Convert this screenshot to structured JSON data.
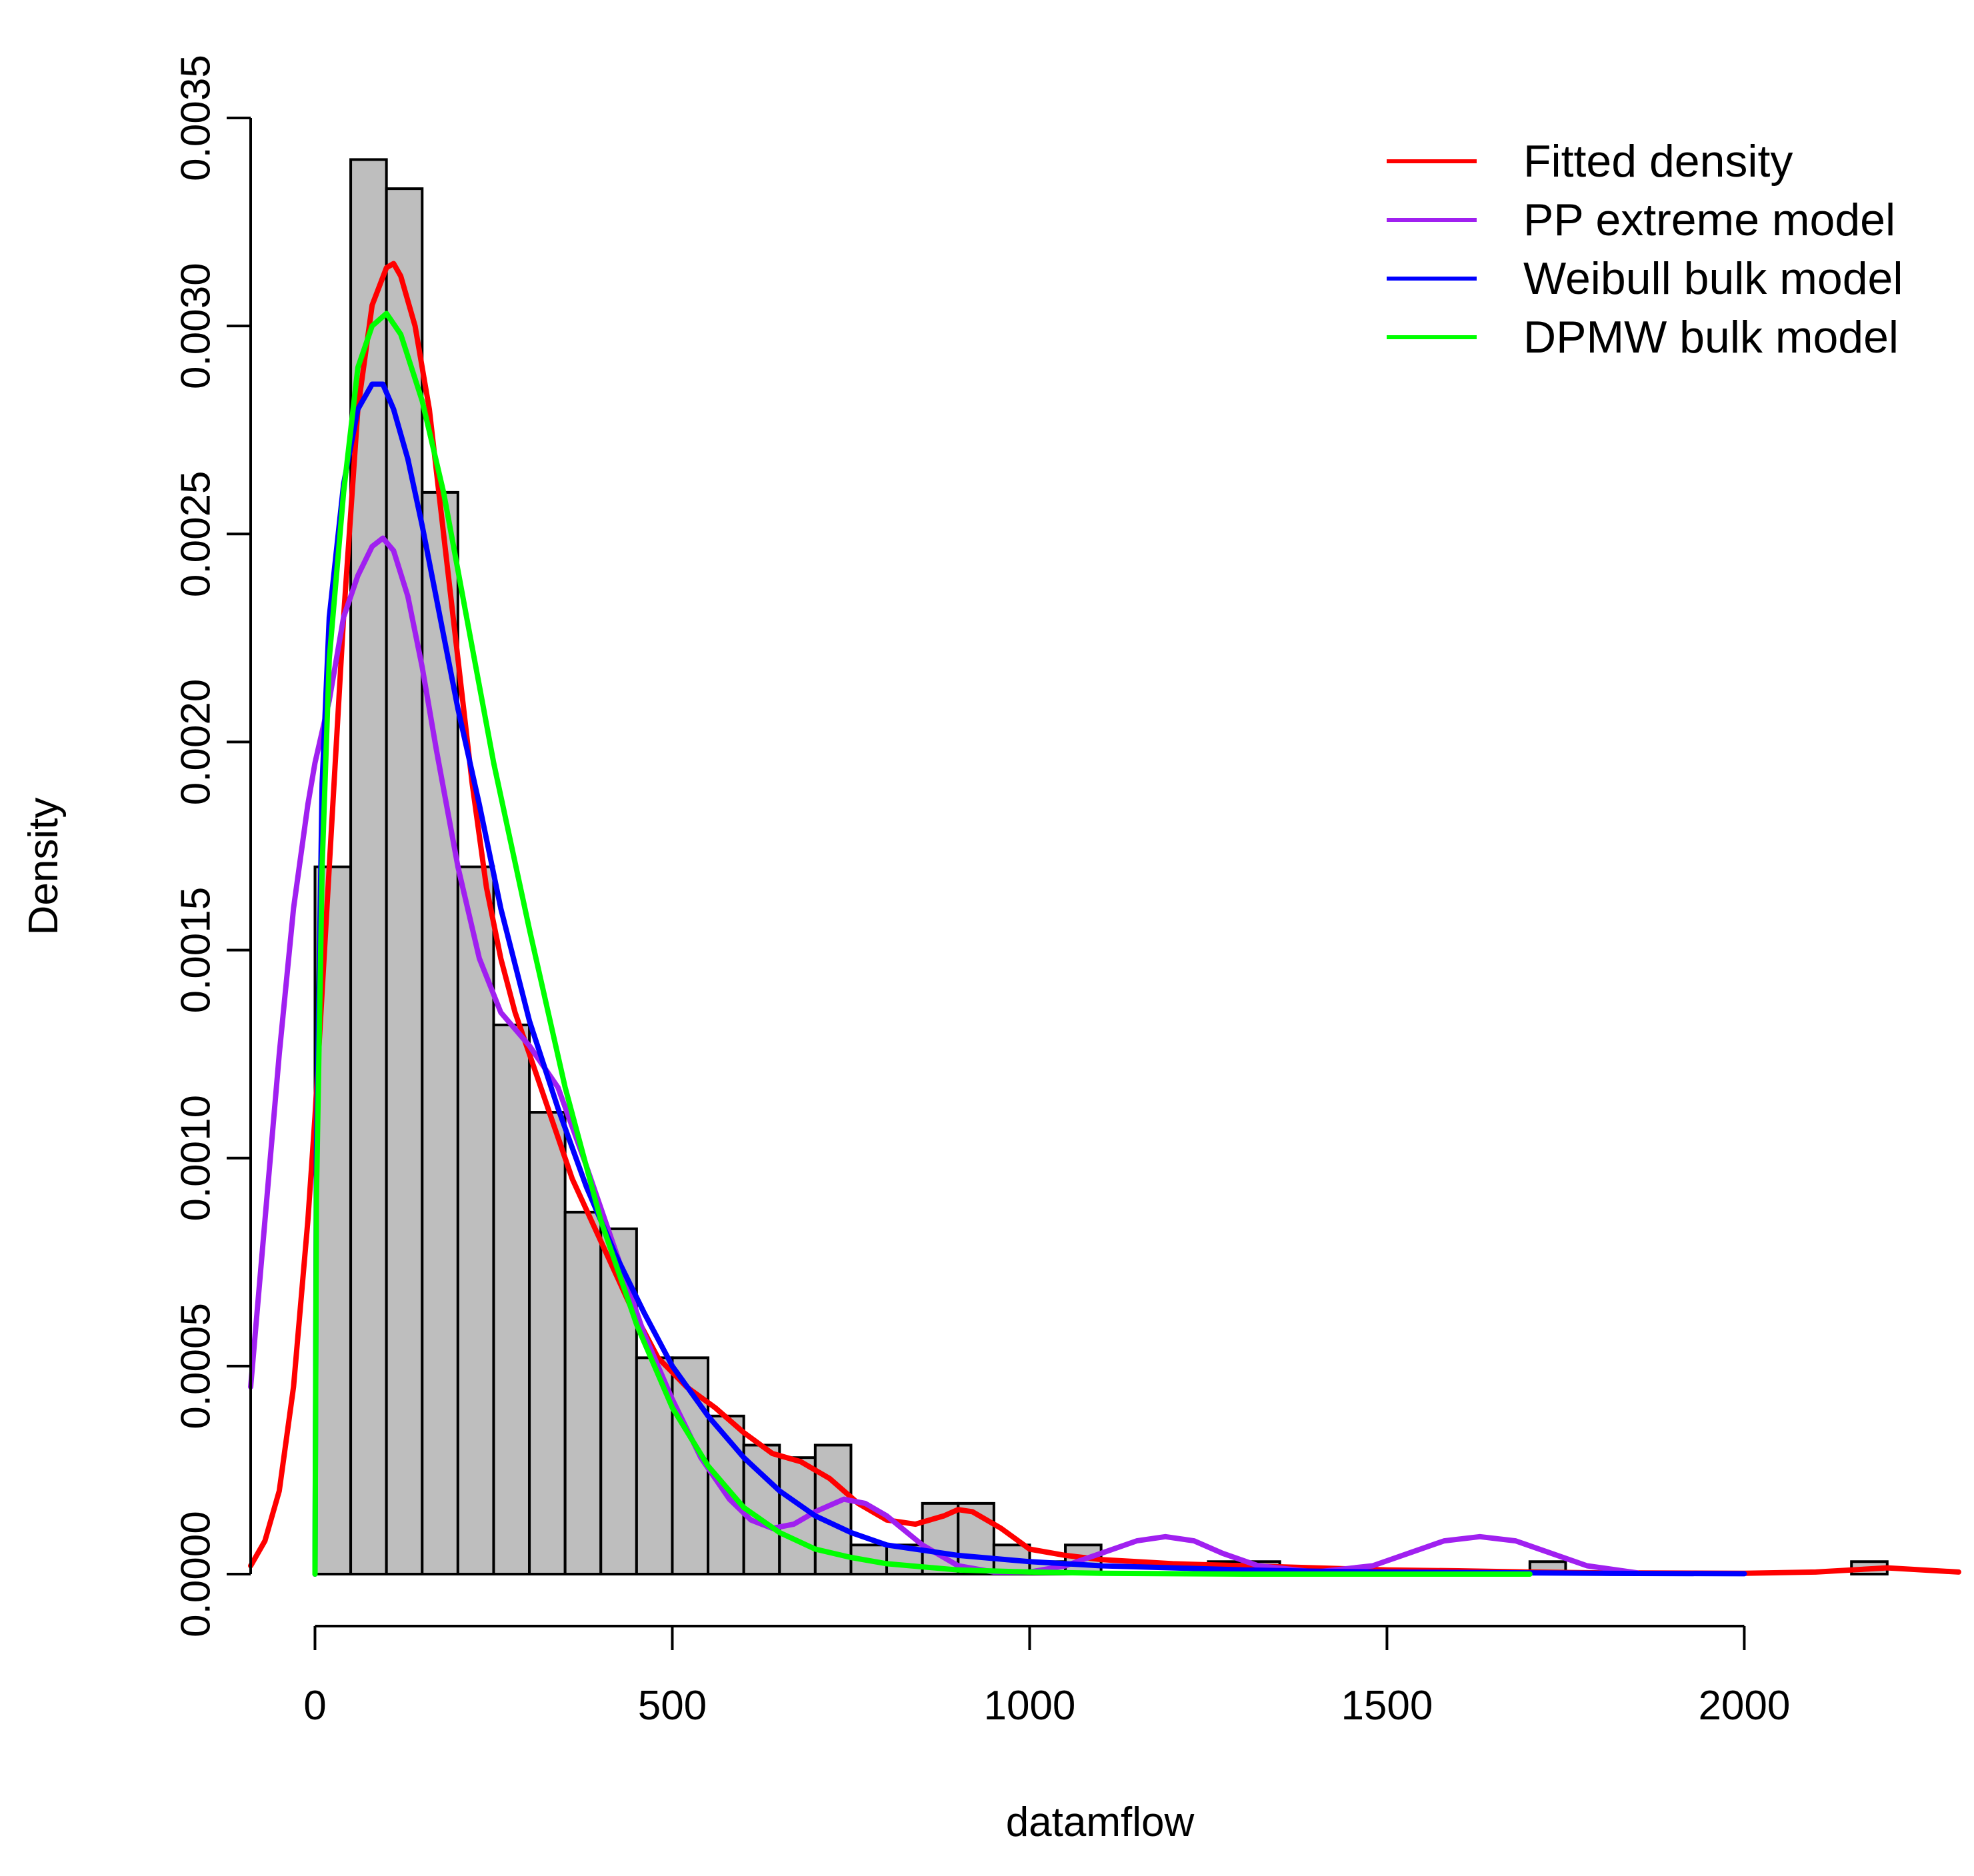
{
  "chart_data": {
    "type": "histogram",
    "title": "",
    "xlabel": "datamflow",
    "ylabel": "Density",
    "xlim": [
      -90,
      2300
    ],
    "ylim": [
      0,
      0.0035
    ],
    "x_ticks": [
      0,
      500,
      1000,
      1500,
      2000
    ],
    "x_tick_labels": [
      "0",
      "500",
      "1000",
      "1500",
      "2000"
    ],
    "y_ticks": [
      0,
      0.0005,
      0.001,
      0.0015,
      0.002,
      0.0025,
      0.003,
      0.0035
    ],
    "y_tick_labels": [
      "0.0000",
      "0.0005",
      "0.0010",
      "0.0015",
      "0.0020",
      "0.0025",
      "0.0030",
      "0.0035"
    ],
    "bins": {
      "bin_width": 50,
      "left_edges": [
        0,
        50,
        100,
        150,
        200,
        250,
        300,
        350,
        400,
        450,
        500,
        550,
        600,
        650,
        700,
        750,
        800,
        850,
        900,
        950,
        1000,
        1050,
        1100,
        1150,
        1200,
        1250,
        1300,
        1350,
        1400,
        1450,
        1500,
        1550,
        1600,
        1650,
        1700,
        1750,
        1800,
        1850,
        1900,
        1950,
        2000,
        2050,
        2100,
        2150,
        2200
      ],
      "densities": [
        0.0017,
        0.0034,
        0.00333,
        0.0026,
        0.0017,
        0.00132,
        0.00111,
        0.00087,
        0.00083,
        0.00052,
        0.00052,
        0.00038,
        0.00031,
        0.00028,
        0.00031,
        7e-05,
        7e-05,
        0.00017,
        0.00017,
        7e-05,
        3e-05,
        7e-05,
        0,
        0,
        0,
        3e-05,
        3e-05,
        0,
        0,
        0,
        0,
        0,
        0,
        0,
        3e-05,
        0,
        0,
        0,
        0,
        0,
        0,
        0,
        0,
        3e-05,
        0
      ]
    },
    "series": [
      {
        "name": "Fitted density",
        "color": "#ff0000",
        "x": [
          -90,
          -70,
          -50,
          -30,
          -10,
          0,
          20,
          40,
          60,
          80,
          100,
          110,
          120,
          140,
          160,
          180,
          200,
          220,
          240,
          260,
          280,
          300,
          330,
          360,
          400,
          440,
          480,
          520,
          560,
          600,
          640,
          680,
          720,
          760,
          800,
          840,
          880,
          900,
          920,
          960,
          1000,
          1050,
          1100,
          1150,
          1200,
          1300,
          1400,
          1500,
          1600,
          1700,
          1800,
          2000,
          2100,
          2200,
          2300
        ],
        "y": [
          2e-05,
          8e-05,
          0.0002,
          0.00045,
          0.00085,
          0.0011,
          0.0017,
          0.0023,
          0.0028,
          0.00305,
          0.00314,
          0.00315,
          0.00312,
          0.003,
          0.0028,
          0.0025,
          0.0022,
          0.0019,
          0.00165,
          0.00148,
          0.00135,
          0.00125,
          0.0011,
          0.00095,
          0.0008,
          0.00065,
          0.00052,
          0.00045,
          0.0004,
          0.00034,
          0.00029,
          0.00027,
          0.00023,
          0.00017,
          0.00013,
          0.00012,
          0.00014,
          0.000155,
          0.00015,
          0.00011,
          6e-05,
          4.5e-05,
          3.5e-05,
          3e-05,
          2.5e-05,
          2e-05,
          1.5e-05,
          1e-05,
          8e-06,
          5e-06,
          3e-06,
          2e-06,
          5e-06,
          1.5e-05,
          5e-06
        ]
      },
      {
        "name": "PP extreme model",
        "color": "#a020f0",
        "x": [
          -90,
          -70,
          -50,
          -30,
          -10,
          0,
          20,
          40,
          60,
          80,
          95,
          110,
          130,
          150,
          170,
          200,
          230,
          260,
          300,
          340,
          380,
          420,
          460,
          500,
          540,
          580,
          610,
          640,
          670,
          700,
          740,
          770,
          800,
          850,
          900,
          950,
          1000,
          1050,
          1100,
          1150,
          1190,
          1230,
          1270,
          1320,
          1400,
          1480,
          1530,
          1580,
          1630,
          1680,
          1730,
          1780,
          1850
        ],
        "y": [
          0.00045,
          0.00085,
          0.00125,
          0.0016,
          0.00185,
          0.00195,
          0.0021,
          0.0023,
          0.0024,
          0.00247,
          0.00249,
          0.00246,
          0.00235,
          0.00218,
          0.00198,
          0.0017,
          0.00148,
          0.00135,
          0.00127,
          0.00117,
          0.00098,
          0.00078,
          0.00058,
          0.00042,
          0.00028,
          0.00018,
          0.00013,
          0.00011,
          0.00012,
          0.00015,
          0.00018,
          0.00017,
          0.00014,
          7e-05,
          2e-05,
          5e-06,
          5e-06,
          2e-05,
          5e-05,
          8e-05,
          9e-05,
          8e-05,
          5e-05,
          2e-05,
          5e-06,
          2e-05,
          5e-05,
          8e-05,
          9e-05,
          8e-05,
          5e-05,
          2e-05,
          3e-06
        ]
      },
      {
        "name": "Weibull bulk model",
        "color": "#0000ff",
        "x": [
          0,
          2,
          10,
          20,
          40,
          60,
          80,
          95,
          110,
          130,
          150,
          175,
          200,
          230,
          260,
          300,
          340,
          380,
          420,
          460,
          500,
          550,
          600,
          650,
          700,
          750,
          800,
          900,
          1000,
          1100,
          1200,
          1300,
          1400,
          1500,
          1600,
          1800,
          2000
        ],
        "y": [
          0,
          0.001,
          0.0019,
          0.0023,
          0.00262,
          0.0028,
          0.00286,
          0.00286,
          0.0028,
          0.00268,
          0.00252,
          0.0023,
          0.00208,
          0.00185,
          0.0016,
          0.00133,
          0.00112,
          0.00093,
          0.00077,
          0.00063,
          0.0005,
          0.00038,
          0.00028,
          0.0002,
          0.00014,
          0.0001,
          7e-05,
          4.5e-05,
          3e-05,
          2e-05,
          1.5e-05,
          1e-05,
          7e-06,
          5e-06,
          4e-06,
          2e-06,
          1e-06
        ]
      },
      {
        "name": "DPMW bulk model",
        "color": "#00ff00",
        "x": [
          0,
          2,
          10,
          20,
          40,
          60,
          80,
          100,
          120,
          150,
          180,
          210,
          250,
          300,
          350,
          400,
          450,
          500,
          550,
          600,
          650,
          700,
          750,
          800,
          900,
          1000,
          1100,
          1200,
          1300,
          1400,
          1500,
          1600,
          1700
        ],
        "y": [
          0,
          0.0009,
          0.0017,
          0.0022,
          0.0026,
          0.0029,
          0.003,
          0.00303,
          0.00298,
          0.00282,
          0.0026,
          0.00232,
          0.00195,
          0.00155,
          0.00117,
          0.00085,
          0.0006,
          0.0004,
          0.00026,
          0.00016,
          0.0001,
          6e-05,
          4e-05,
          2.5e-05,
          1e-05,
          5e-06,
          2e-06,
          1e-06,
          0,
          0,
          0,
          0,
          0
        ]
      }
    ],
    "legend": {
      "position": "top-right",
      "entries": [
        "Fitted density",
        "PP extreme model",
        "Weibull bulk model",
        "DPMW bulk model"
      ]
    }
  }
}
